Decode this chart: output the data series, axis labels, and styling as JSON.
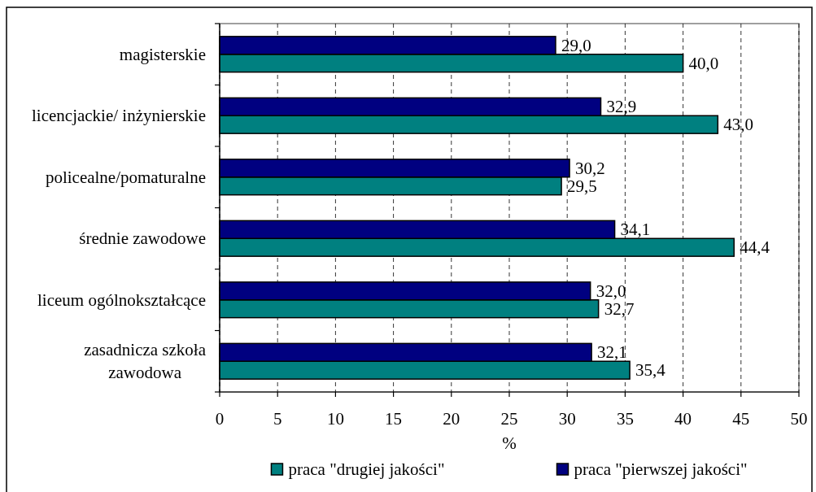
{
  "chart_data": {
    "type": "bar",
    "orientation": "horizontal",
    "categories": [
      "magisterskie",
      "licencjackie/ inżynierskie",
      "policealne/pomaturalne",
      "średnie zawodowe",
      "liceum ogólnokształcące",
      "zasadnicza szkoła zawodowa"
    ],
    "series": [
      {
        "name": "praca \"drugiej jakości\"",
        "color": "#008080",
        "values": [
          40.0,
          43.0,
          29.5,
          44.4,
          32.7,
          35.4
        ],
        "value_labels": [
          "40,0",
          "43,0",
          "29,5",
          "44,4",
          "32,7",
          "35,4"
        ]
      },
      {
        "name": "praca \"pierwszej jakości\"",
        "color": "#000080",
        "values": [
          29.0,
          32.9,
          30.2,
          34.1,
          32.0,
          32.1
        ],
        "value_labels": [
          "29,0",
          "32,9",
          "30,2",
          "34,1",
          "32,0",
          "32,1"
        ]
      }
    ],
    "xlabel": "%",
    "xlim": [
      0,
      50
    ],
    "xticks": [
      0,
      5,
      10,
      15,
      20,
      25,
      30,
      35,
      40,
      45,
      50
    ],
    "grid": "x",
    "legend": "bottom"
  }
}
